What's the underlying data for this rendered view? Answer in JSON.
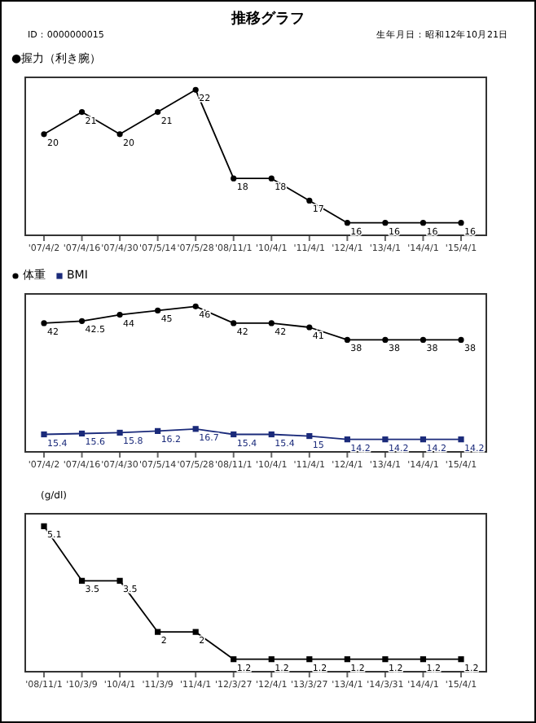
{
  "chart_data": [
    {
      "type": "line",
      "title": "推移グラフ",
      "annotations": [
        "ID：0000000015",
        "生年月日：昭和12年10月21日"
      ],
      "subtitle": "●握力（利き腕）",
      "categories": [
        "'07/4/2",
        "'07/4/16",
        "'07/4/30",
        "'07/5/14",
        "'07/5/28",
        "'08/11/1",
        "'10/4/1",
        "'11/4/1",
        "'12/4/1",
        "'13/4/1",
        "'14/4/1",
        "'15/4/1"
      ],
      "series": [
        {
          "color": "#000000",
          "marker": "circle",
          "values": [
            20,
            21,
            20,
            21,
            22,
            18,
            18,
            17,
            16,
            16,
            16,
            16
          ]
        }
      ],
      "data_labels": true,
      "grid": false,
      "legend": false,
      "line_style": "solid"
    },
    {
      "type": "line",
      "categories": [
        "'07/4/2",
        "'07/4/16",
        "'07/4/30",
        "'07/5/14",
        "'07/5/28",
        "'08/11/1",
        "'10/4/1",
        "'11/4/1",
        "'12/4/1",
        "'13/4/1",
        "'14/4/1",
        "'15/4/1"
      ],
      "series": [
        {
          "name": "体重",
          "color": "#000000",
          "marker": "circle",
          "values": [
            42,
            42.5,
            44,
            45,
            46,
            42,
            42,
            41,
            38,
            38,
            38,
            38
          ]
        },
        {
          "name": "BMI",
          "color": "#1a2a7a",
          "marker": "square",
          "values": [
            15.4,
            15.6,
            15.8,
            16.2,
            16.7,
            15.4,
            15.4,
            15.0,
            14.2,
            14.2,
            14.2,
            14.2
          ]
        }
      ],
      "data_labels": true,
      "grid": false,
      "legend": "top left",
      "line_style": "solid"
    },
    {
      "type": "line",
      "ylabel": "(g/dl)",
      "categories": [
        "'08/11/1",
        "'10/3/9",
        "'10/4/1",
        "'11/3/9",
        "'11/4/1",
        "'12/3/27",
        "'12/4/1",
        "'13/3/27",
        "'13/4/1",
        "'14/3/31",
        "'14/4/1",
        "'15/4/1"
      ],
      "series": [
        {
          "color": "#000000",
          "marker": "square",
          "values": [
            5.1,
            3.5,
            3.5,
            2.0,
            2.0,
            1.2,
            1.2,
            1.2,
            1.2,
            1.2,
            1.2,
            1.2
          ]
        }
      ],
      "data_labels": true,
      "grid": false,
      "legend": false,
      "line_style": "solid"
    }
  ]
}
